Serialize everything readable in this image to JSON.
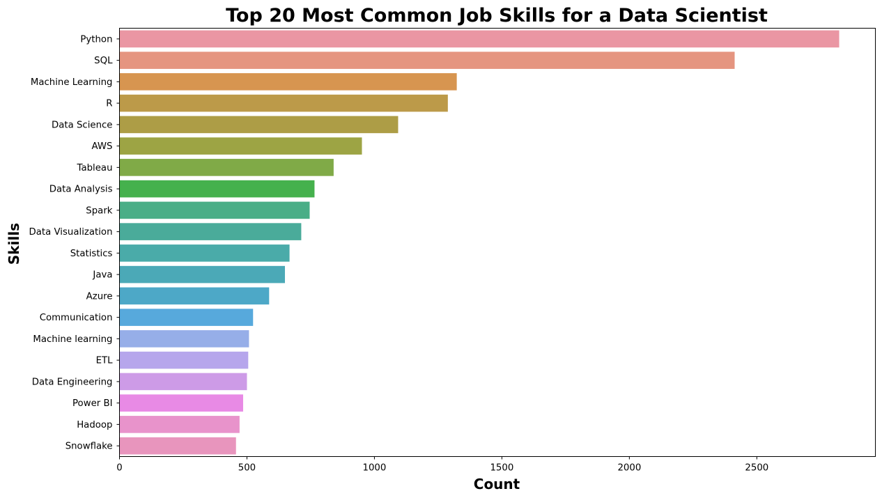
{
  "chart_data": {
    "type": "bar",
    "orientation": "horizontal",
    "title": "Top 20 Most Common Job Skills for a Data Scientist",
    "xlabel": "Count",
    "ylabel": "Skills",
    "xlim": [
      0,
      2965
    ],
    "xticks": [
      0,
      500,
      1000,
      1500,
      2000,
      2500
    ],
    "grid": false,
    "legend": "none",
    "categories": [
      "Python",
      "SQL",
      "Machine Learning",
      "R",
      "Data Science",
      "AWS",
      "Tableau",
      "Data Analysis",
      "Spark",
      "Data Visualization",
      "Statistics",
      "Java",
      "Azure",
      "Communication",
      "Machine learning",
      "ETL",
      "Data Engineering",
      "Power BI",
      "Hadoop",
      "Snowflake"
    ],
    "values": [
      2823,
      2413,
      1323,
      1288,
      1093,
      951,
      840,
      765,
      746,
      713,
      667,
      649,
      587,
      524,
      508,
      505,
      500,
      485,
      471,
      457
    ],
    "colors": [
      "#ea96a3",
      "#e59580",
      "#d79550",
      "#bc9a49",
      "#ad9d46",
      "#9da444",
      "#80aa47",
      "#45b14d",
      "#4aae87",
      "#4aab9a",
      "#4aaba9",
      "#4ba9b7",
      "#4da8c7",
      "#57a9dc",
      "#96aee8",
      "#b6a6ec",
      "#cd9be7",
      "#e88ae5",
      "#e893cb",
      "#e895bd"
    ]
  }
}
